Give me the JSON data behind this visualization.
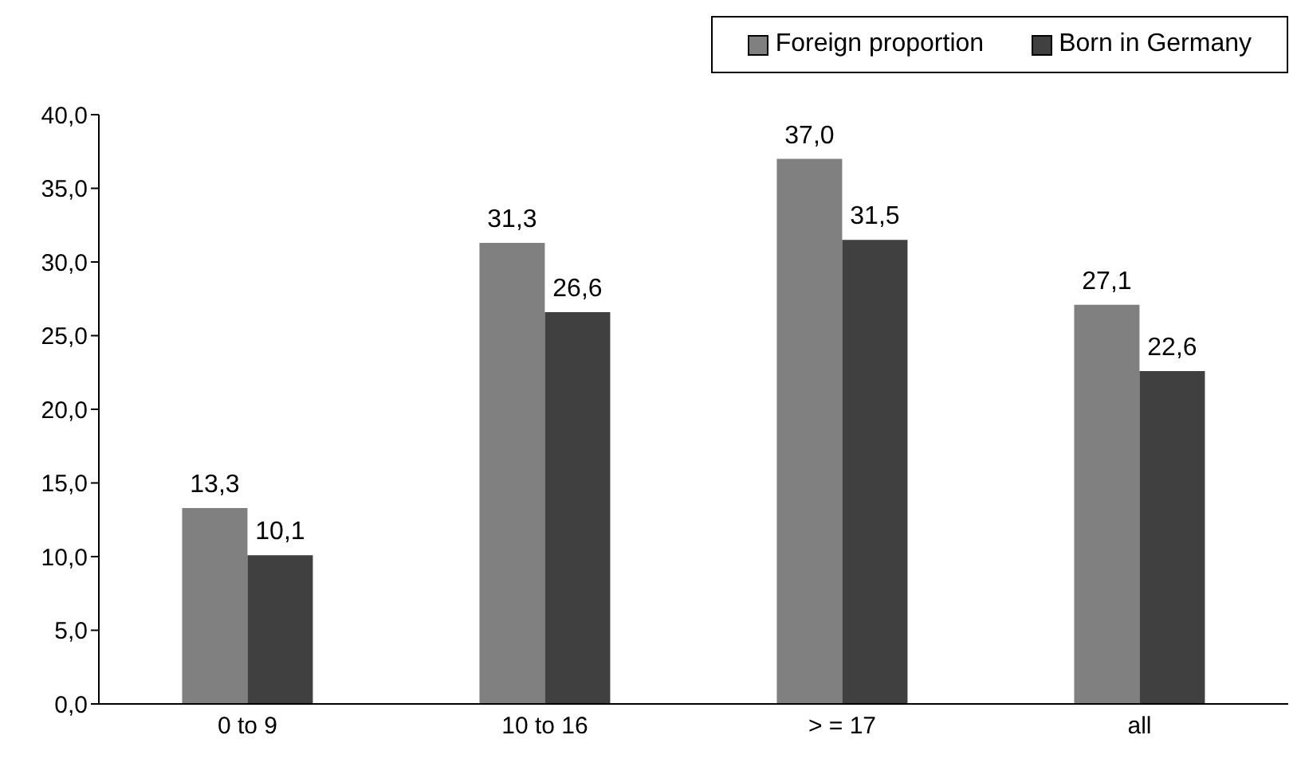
{
  "chart_data": {
    "type": "bar",
    "categories": [
      "0 to 9",
      "10 to 16",
      "> = 17",
      "all"
    ],
    "series": [
      {
        "name": "Foreign proportion",
        "color": "#808080",
        "values": [
          13.3,
          31.3,
          37.0,
          27.1
        ],
        "value_labels": [
          "13,3",
          "31,3",
          "37,0",
          "27,1"
        ]
      },
      {
        "name": "Born in Germany",
        "color": "#404040",
        "values": [
          10.1,
          26.6,
          31.5,
          22.6
        ],
        "value_labels": [
          "10,1",
          "26,6",
          "31,5",
          "22,6"
        ]
      }
    ],
    "ylim": [
      0,
      40
    ],
    "yticks": [
      {
        "value": 0,
        "label": "0,0"
      },
      {
        "value": 5,
        "label": "5,0"
      },
      {
        "value": 10,
        "label": "10,0"
      },
      {
        "value": 15,
        "label": "15,0"
      },
      {
        "value": 20,
        "label": "20,0"
      },
      {
        "value": 25,
        "label": "25,0"
      },
      {
        "value": 30,
        "label": "30,0"
      },
      {
        "value": 35,
        "label": "35,0"
      },
      {
        "value": 40,
        "label": "40,0"
      }
    ],
    "grid": false,
    "legend": "top right"
  }
}
